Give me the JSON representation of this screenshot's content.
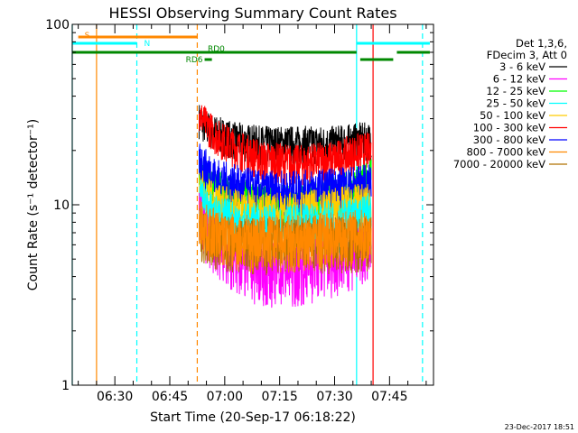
{
  "chart_data": {
    "type": "line",
    "title": "HESSI Observing Summary Count Rates",
    "xlabel": "Start Time (20-Sep-17 06:18:22)",
    "ylabel": "Count Rate (s⁻¹ detector⁻¹)",
    "yscale": "log",
    "ylim": [
      1,
      100
    ],
    "xlim": [
      "06:18:22",
      "07:57:00"
    ],
    "y_tick_labels": [
      "1",
      "10",
      "100"
    ],
    "x_tick_labels": [
      "06:30",
      "06:45",
      "07:00",
      "07:15",
      "07:30",
      "07:45"
    ],
    "legend": {
      "placement": "right-outside",
      "header": [
        "Det 1,3,6,",
        "FDecim 3, Att 0"
      ],
      "entries": [
        {
          "label": "3 - 6 keV",
          "color": "#000000"
        },
        {
          "label": "6 - 12 keV",
          "color": "#ff00ff"
        },
        {
          "label": "12 - 25 keV",
          "color": "#00ff00"
        },
        {
          "label": "25 - 50 keV",
          "color": "#00ffff"
        },
        {
          "label": "50 - 100 keV",
          "color": "#ffcc00"
        },
        {
          "label": "100 - 300 keV",
          "color": "#ff0000"
        },
        {
          "label": "300 - 800 keV",
          "color": "#0000ff"
        },
        {
          "label": "800 - 7000 keV",
          "color": "#ff8800"
        },
        {
          "label": "7000 - 20000 keV",
          "color": "#b07000"
        }
      ]
    },
    "series": [
      {
        "name": "3 - 6 keV",
        "color": "#000000",
        "x": [
          "06:53:00",
          "06:55:00",
          "06:58:00",
          "07:03:00",
          "07:10:00",
          "07:20:00",
          "07:30:00",
          "07:37:00",
          "07:40:00"
        ],
        "y": [
          30,
          27,
          25,
          23,
          22,
          22,
          22,
          23,
          23
        ]
      },
      {
        "name": "6 - 12 keV",
        "color": "#ff00ff",
        "x": [
          "06:53:00",
          "06:55:00",
          "06:58:00",
          "07:03:00",
          "07:10:00",
          "07:20:00",
          "07:30:00",
          "07:37:00",
          "07:40:00"
        ],
        "y": [
          9,
          7,
          6,
          5,
          4.5,
          4.5,
          5,
          5.5,
          5.5
        ]
      },
      {
        "name": "12 - 25 keV",
        "color": "#00ff00",
        "x": [
          "06:53:00",
          "06:55:00",
          "06:58:00",
          "07:03:00",
          "07:10:00",
          "07:20:00",
          "07:30:00",
          "07:37:00",
          "07:40:00"
        ],
        "y": [
          17,
          14,
          12,
          11,
          10,
          10,
          11,
          13,
          14
        ]
      },
      {
        "name": "25 - 50 keV",
        "color": "#00ffff",
        "x": [
          "06:53:00",
          "06:55:00",
          "06:58:00",
          "07:03:00",
          "07:10:00",
          "07:20:00",
          "07:30:00",
          "07:37:00",
          "07:40:00"
        ],
        "y": [
          11,
          9.5,
          8.5,
          8,
          7.5,
          7.5,
          8,
          8.5,
          9
        ]
      },
      {
        "name": "50 - 100 keV",
        "color": "#ffcc00",
        "x": [
          "06:53:00",
          "06:55:00",
          "06:58:00",
          "07:03:00",
          "07:10:00",
          "07:20:00",
          "07:30:00",
          "07:37:00",
          "07:40:00"
        ],
        "y": [
          13,
          11,
          10,
          9.5,
          9,
          9,
          9.5,
          10,
          10
        ]
      },
      {
        "name": "100 - 300 keV",
        "color": "#ff0000",
        "x": [
          "06:53:00",
          "06:55:00",
          "06:58:00",
          "07:03:00",
          "07:10:00",
          "07:20:00",
          "07:30:00",
          "07:37:00",
          "07:40:00"
        ],
        "y": [
          32,
          28,
          24,
          21,
          18,
          17,
          18,
          20,
          20
        ]
      },
      {
        "name": "300 - 800 keV",
        "color": "#0000ff",
        "x": [
          "06:53:00",
          "06:55:00",
          "06:58:00",
          "07:03:00",
          "07:10:00",
          "07:20:00",
          "07:30:00",
          "07:37:00",
          "07:40:00"
        ],
        "y": [
          18,
          16,
          14,
          13,
          12,
          12,
          12.5,
          13,
          13
        ]
      },
      {
        "name": "800 - 7000 keV",
        "color": "#ff8800",
        "x": [
          "06:53:00",
          "06:55:00",
          "06:58:00",
          "07:03:00",
          "07:10:00",
          "07:20:00",
          "07:30:00",
          "07:37:00",
          "07:40:00"
        ],
        "y": [
          8.5,
          7.5,
          7,
          6.5,
          6.5,
          6.5,
          6.8,
          7,
          7
        ]
      },
      {
        "name": "7000 - 20000 keV",
        "color": "#b07000",
        "x": [
          "06:53:00",
          "06:55:00",
          "06:58:00",
          "07:03:00",
          "07:10:00",
          "07:20:00",
          "07:30:00",
          "07:37:00",
          "07:40:00"
        ],
        "y": [
          7.5,
          7,
          6.5,
          6.3,
          6.2,
          6.2,
          6.4,
          6.5,
          6.5
        ]
      }
    ],
    "vertical_markers": [
      {
        "time": "06:18:22",
        "color": "#00ffff",
        "style": "solid"
      },
      {
        "time": "06:25:00",
        "color": "#ff8800",
        "style": "solid"
      },
      {
        "time": "06:36:00",
        "color": "#00ffff",
        "style": "dashed"
      },
      {
        "time": "06:52:30",
        "color": "#ff8800",
        "style": "dashed"
      },
      {
        "time": "07:36:00",
        "color": "#00ffff",
        "style": "solid"
      },
      {
        "time": "07:40:30",
        "color": "#ff0000",
        "style": "solid"
      },
      {
        "time": "07:54:00",
        "color": "#00ffff",
        "style": "dashed"
      }
    ],
    "flag_bars": [
      {
        "label": "S",
        "color": "#ff8800",
        "start": "06:20:00",
        "end": "06:52:30",
        "level": 1
      },
      {
        "label": "N",
        "color": "#00ffff",
        "start": "06:18:22",
        "end": "06:36:00",
        "level": 2
      },
      {
        "label": "",
        "color": "#00ffff",
        "start": "07:36:00",
        "end": "07:56:00",
        "level": 2
      },
      {
        "label": "RD0",
        "color": "#008800",
        "start": "06:18:22",
        "end": "07:36:00",
        "level": 3
      },
      {
        "label": "",
        "color": "#008800",
        "start": "07:37:00",
        "end": "07:46:00",
        "level": 4
      },
      {
        "label": "",
        "color": "#008800",
        "start": "07:47:00",
        "end": "07:56:00",
        "level": 3
      },
      {
        "label": "RD6",
        "color": "#008800",
        "start": "06:54:30",
        "end": "06:56:30",
        "level": 4
      }
    ]
  },
  "footer_date": "23-Dec-2017 18:51"
}
